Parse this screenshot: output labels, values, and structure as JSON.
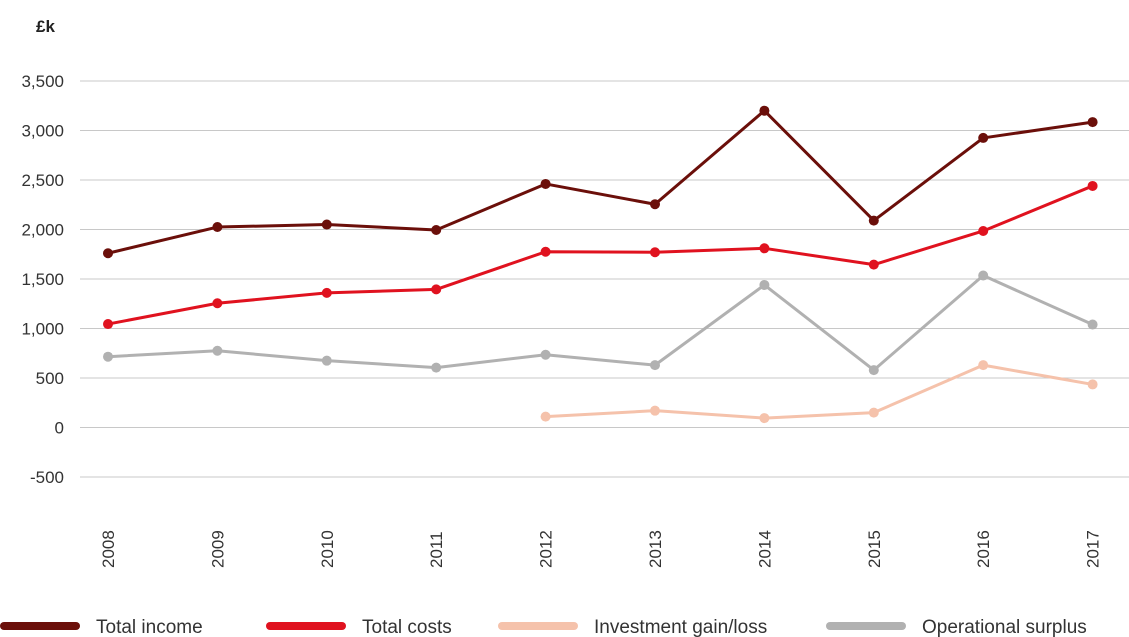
{
  "chart_data": {
    "type": "line",
    "title": "",
    "unit_label": "£k",
    "xlabel": "",
    "ylabel": "",
    "ylim": [
      -500,
      3500
    ],
    "yticks": [
      -500,
      0,
      500,
      1000,
      1500,
      2000,
      2500,
      3000,
      3500
    ],
    "ytick_labels": [
      "-500",
      "0",
      "500",
      "1,000",
      "1,500",
      "2,000",
      "2,500",
      "3,000",
      "3,500"
    ],
    "categories": [
      "2008",
      "2009",
      "2010",
      "2011",
      "2012",
      "2013",
      "2014",
      "2015",
      "2016",
      "2017"
    ],
    "grid": true,
    "legend_position": "bottom",
    "series": [
      {
        "name": "Total income",
        "color": "#6b0f0a",
        "values": [
          1760,
          2025,
          2050,
          1995,
          2460,
          2255,
          3200,
          2090,
          2925,
          3085
        ]
      },
      {
        "name": "Total costs",
        "color": "#e0121f",
        "values": [
          1045,
          1255,
          1360,
          1395,
          1775,
          1770,
          1810,
          1645,
          1985,
          2440
        ]
      },
      {
        "name": "Investment gain/loss",
        "color": "#f5c2ab",
        "values": [
          null,
          null,
          null,
          null,
          110,
          170,
          95,
          150,
          630,
          435
        ]
      },
      {
        "name": "Operational surplus",
        "color": "#b1b1b1",
        "values": [
          715,
          775,
          675,
          605,
          735,
          630,
          1440,
          580,
          1535,
          1040
        ]
      }
    ]
  }
}
